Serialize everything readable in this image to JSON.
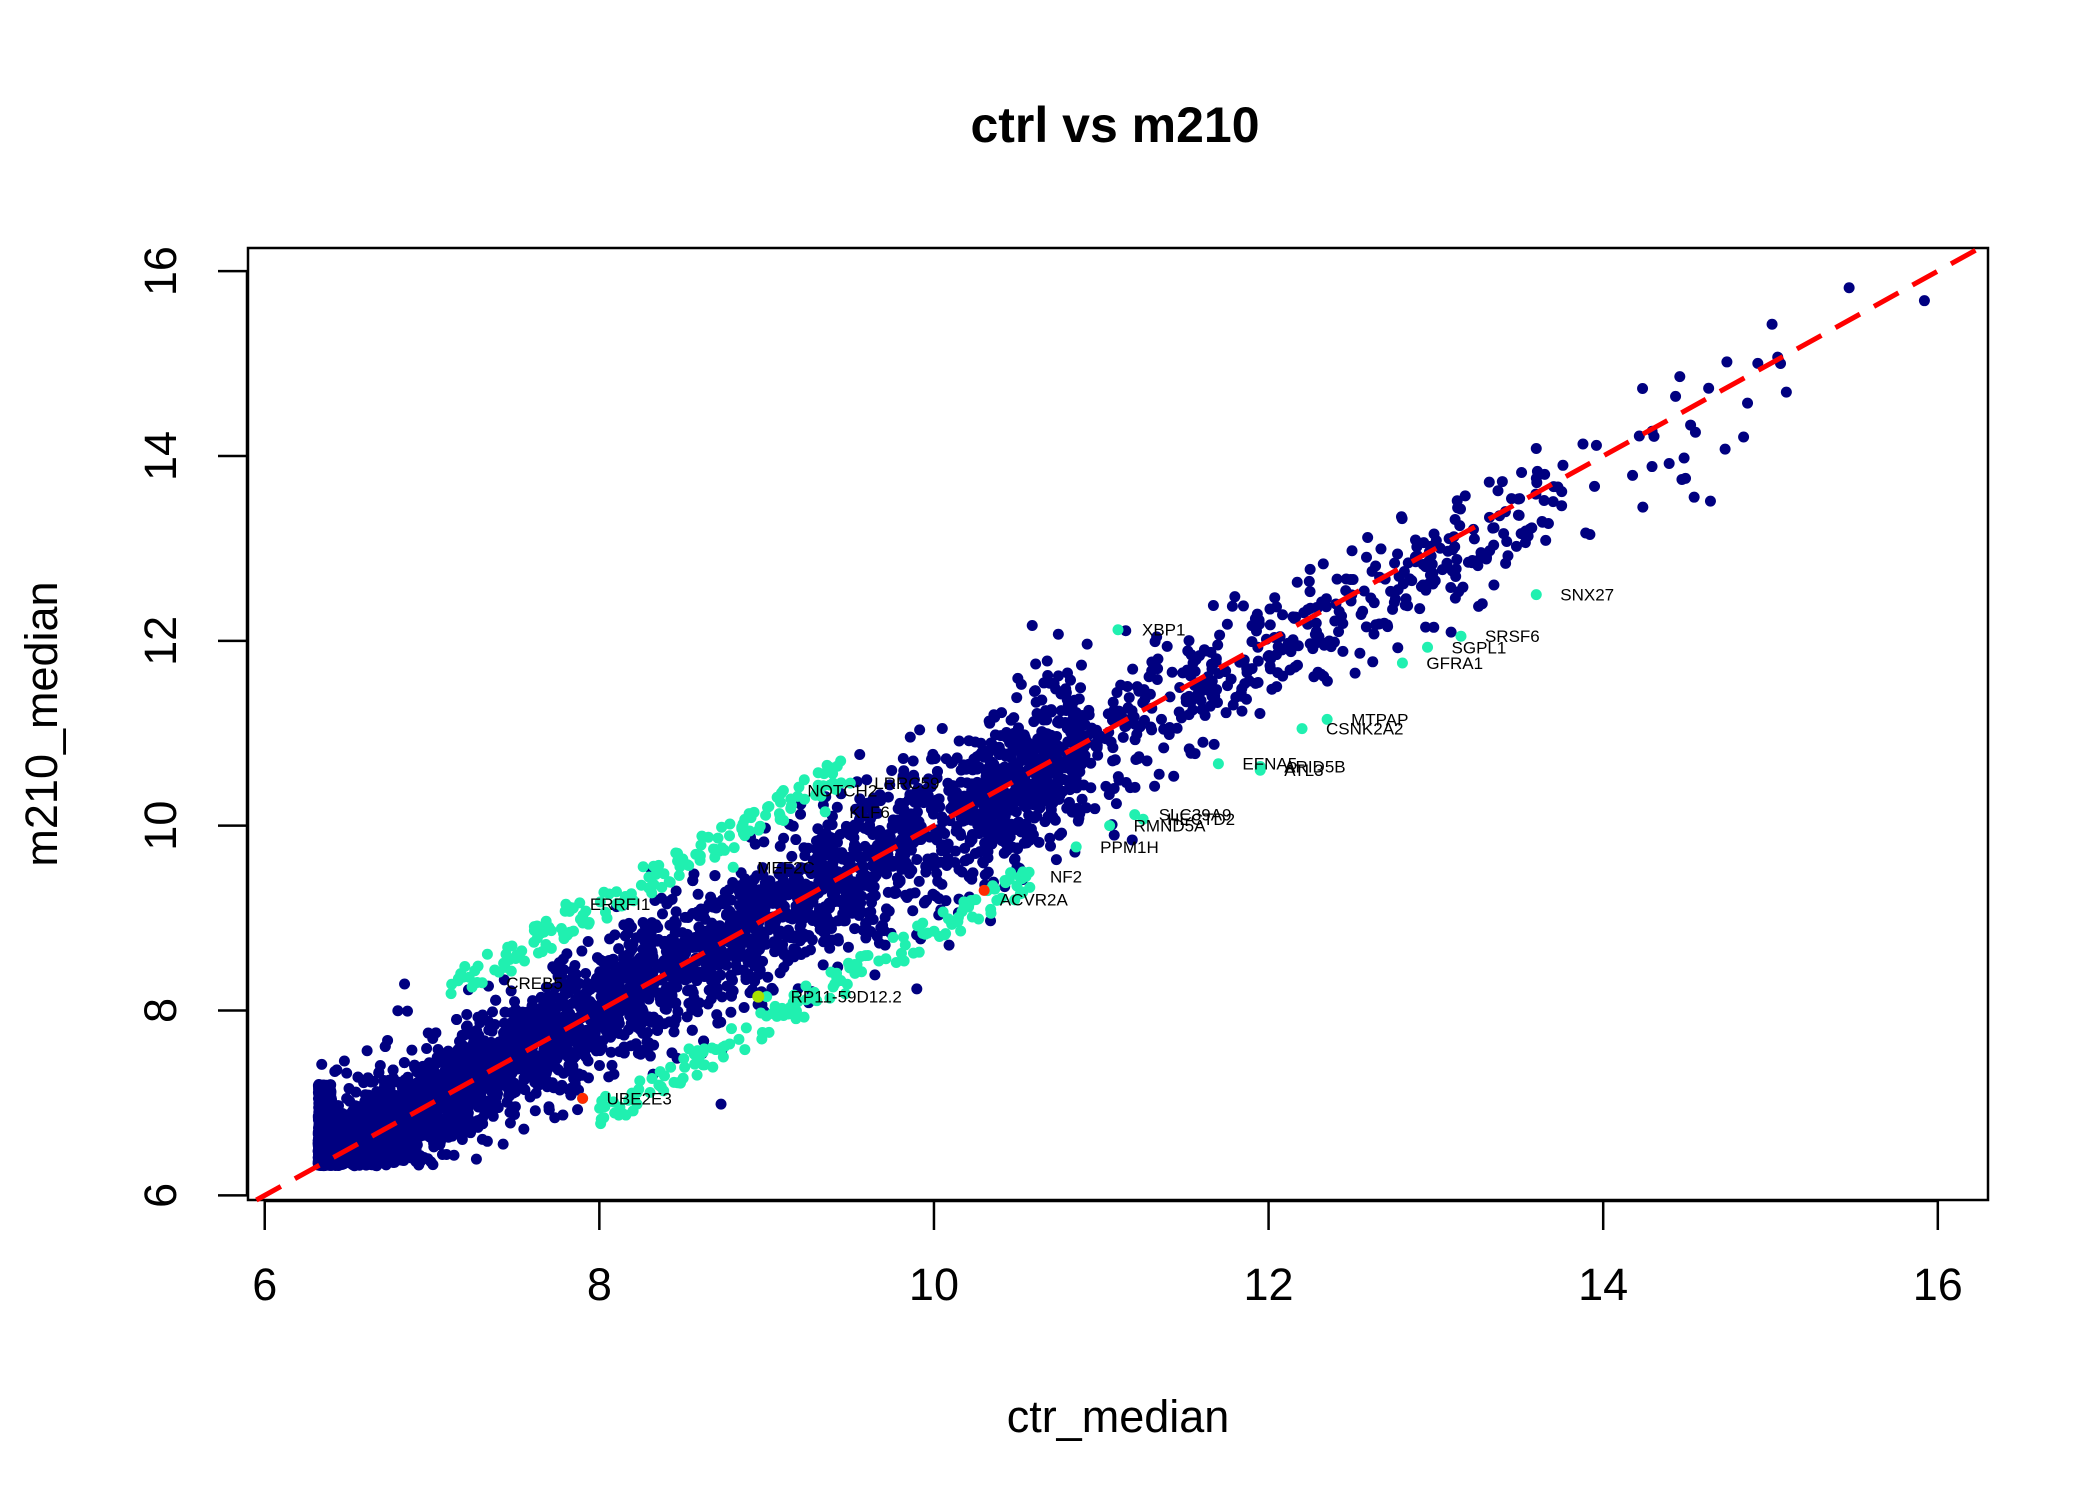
{
  "chart_data": {
    "type": "scatter",
    "title": "ctrl vs m210",
    "xlabel": "ctr_median",
    "ylabel": "m210_median",
    "xlim": [
      5.9,
      16.3
    ],
    "ylim": [
      5.95,
      16.25
    ],
    "x_ticks": [
      6,
      8,
      10,
      12,
      14,
      16
    ],
    "y_ticks": [
      6,
      8,
      10,
      12,
      14,
      16
    ],
    "grid": false,
    "legend": "none",
    "colors": {
      "points": "#000080",
      "highlight": "#20f0b0",
      "red_point": "#ff2a00",
      "yellow_point": "#a8e000",
      "reference_line": "#ff0000"
    },
    "reference_line": {
      "type": "identity",
      "style": "dashed",
      "slope": 1,
      "intercept": 0
    },
    "highlighted_genes": [
      {
        "label": "SNX27",
        "x": 13.6,
        "y": 12.5
      },
      {
        "label": "XBP1",
        "x": 11.1,
        "y": 12.12
      },
      {
        "label": "SRSF6",
        "x": 13.15,
        "y": 12.05
      },
      {
        "label": "SGPL1",
        "x": 12.95,
        "y": 11.93
      },
      {
        "label": "GFRA1",
        "x": 12.8,
        "y": 11.76
      },
      {
        "label": "MTPAP",
        "x": 12.35,
        "y": 11.15
      },
      {
        "label": "CSNK2A2",
        "x": 12.2,
        "y": 11.05
      },
      {
        "label": "EFNA5",
        "x": 11.7,
        "y": 10.67
      },
      {
        "label": "ARID5B",
        "x": 11.95,
        "y": 10.64
      },
      {
        "label": "ATL3",
        "x": 11.95,
        "y": 10.6
      },
      {
        "label": "SLC39A9",
        "x": 11.2,
        "y": 10.12
      },
      {
        "label": "HECTD2",
        "x": 11.25,
        "y": 10.07
      },
      {
        "label": "RMND5A",
        "x": 11.05,
        "y": 10.0
      },
      {
        "label": "PPM1H",
        "x": 10.85,
        "y": 9.77
      },
      {
        "label": "NF2",
        "x": 10.55,
        "y": 9.45
      },
      {
        "label": "ACVR2A",
        "x": 10.25,
        "y": 9.2
      },
      {
        "label": "ERRFI1",
        "x": 7.8,
        "y": 9.15
      },
      {
        "label": "UBE2E3",
        "x": 7.9,
        "y": 7.05
      },
      {
        "label": "RP11-59D12.2",
        "x": 9.0,
        "y": 8.15
      },
      {
        "label": "NOTCH2",
        "x": 9.1,
        "y": 10.38
      },
      {
        "label": "LRRC59",
        "x": 9.5,
        "y": 10.46
      },
      {
        "label": "MEF2C",
        "x": 8.8,
        "y": 9.55
      },
      {
        "label": "KLF6",
        "x": 9.35,
        "y": 10.15
      },
      {
        "label": "CREB5",
        "x": 7.3,
        "y": 8.3
      }
    ]
  }
}
